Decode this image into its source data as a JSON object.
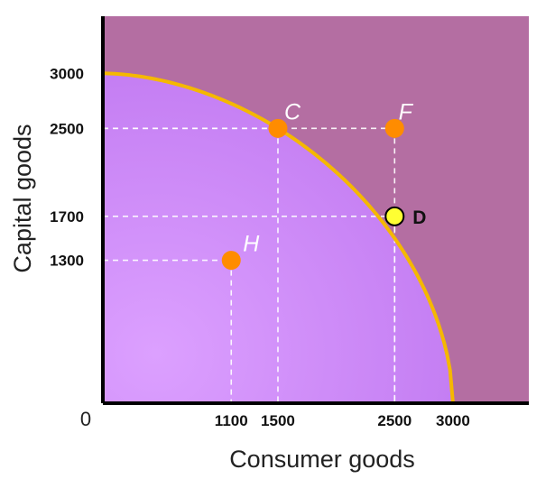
{
  "chart_data": {
    "type": "scatter",
    "title": "",
    "xlabel": "Consumer goods",
    "ylabel": "Capital goods",
    "origin_label": "0",
    "xlim": [
      0,
      3650
    ],
    "ylim": [
      0,
      3520
    ],
    "x_ticks": [
      "1100",
      "1500",
      "2500",
      "3000"
    ],
    "y_ticks": [
      "3000",
      "2500",
      "1700",
      "1300"
    ],
    "curve": {
      "name": "Production possibilities frontier",
      "x_intercept": 3000,
      "y_intercept": 3000,
      "color": "#f5b800"
    },
    "points": [
      {
        "label": "C",
        "x": 1500,
        "y": 2500,
        "color": "#ff8c00"
      },
      {
        "label": "F",
        "x": 2500,
        "y": 2500,
        "color": "#ff8c00"
      },
      {
        "label": "D",
        "x": 2500,
        "y": 1700,
        "color": "#ffff33"
      },
      {
        "label": "H",
        "x": 1100,
        "y": 1300,
        "color": "#ff8c00"
      }
    ],
    "grid": false,
    "colors": {
      "outside_region": "#b46ea2",
      "feasible_region": "#c97df6",
      "axis": "#000000"
    }
  }
}
